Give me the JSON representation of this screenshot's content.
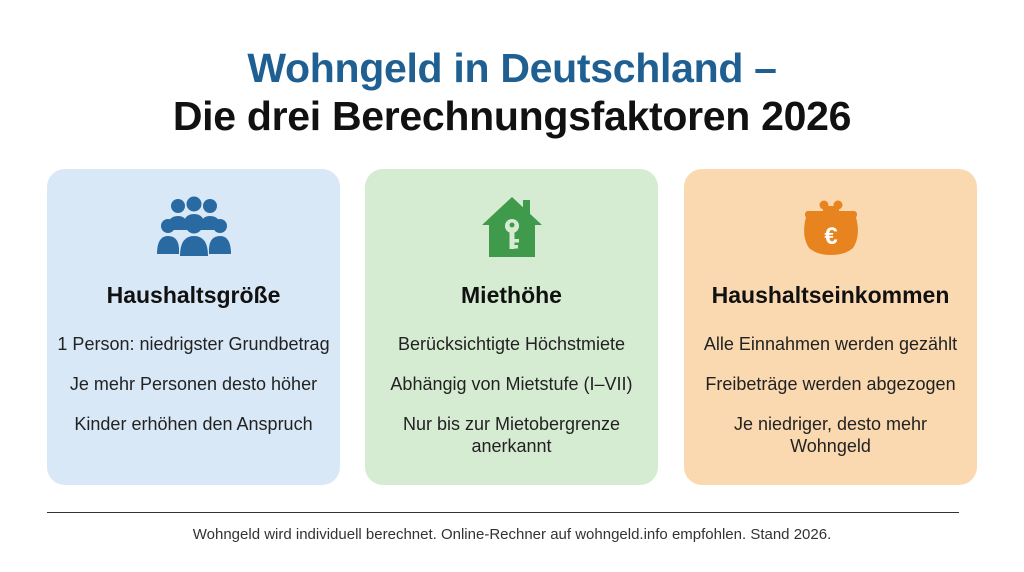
{
  "title": {
    "line1": "Wohngeld in Deutschland –",
    "line2": "Die drei Berechnungsfaktoren 2026"
  },
  "colors": {
    "title_accent": "#1f5f91",
    "card1_bg": "#d9e8f6",
    "card2_bg": "#d6ecd2",
    "card3_bg": "#fad9b0",
    "icon_blue": "#2a6aa3",
    "icon_green": "#3f9a4c",
    "icon_orange": "#e8841f"
  },
  "cards": [
    {
      "icon": "people-group-icon",
      "heading": "Haushaltsgröße",
      "lines": [
        "1 Person: niedrigster Grundbetrag",
        "Je mehr Personen desto höher",
        "Kinder erhöhen den Anspruch"
      ]
    },
    {
      "icon": "house-key-icon",
      "heading": "Miethöhe",
      "lines": [
        "Berücksichtigte Höchstmiete",
        "Abhängig von Mietstufe (I–VII)",
        "Nur bis zur Mietobergrenze anerkannt"
      ]
    },
    {
      "icon": "euro-purse-icon",
      "heading": "Haushaltseinkommen",
      "lines": [
        "Alle Einnahmen werden gezählt",
        "Freibeträge werden abgezogen",
        "Je niedriger, desto mehr Wohngeld"
      ]
    }
  ],
  "footer": "Wohngeld wird individuell berechnet. Online-Rechner auf wohngeld.info empfohlen. Stand 2026."
}
